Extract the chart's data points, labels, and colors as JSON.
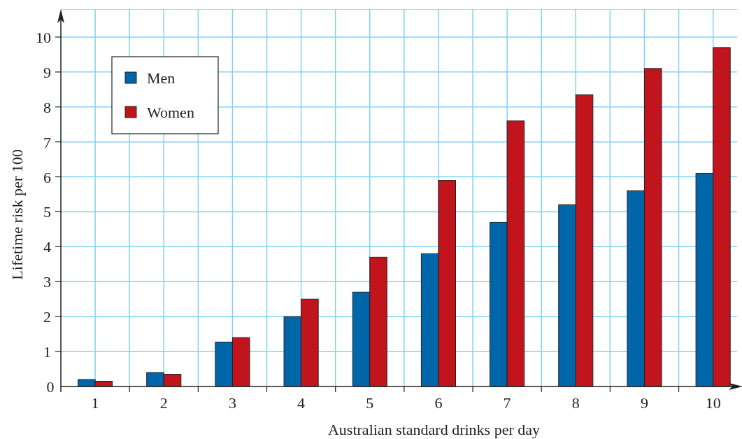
{
  "chart_data": {
    "type": "bar",
    "xlabel": "Australian standard drinks per day",
    "ylabel": "Lifetime risk per 100",
    "categories": [
      "1",
      "2",
      "3",
      "4",
      "5",
      "6",
      "7",
      "8",
      "9",
      "10"
    ],
    "series": [
      {
        "name": "Men",
        "color": "#0066aa",
        "values": [
          0.2,
          0.4,
          1.27,
          2.0,
          2.7,
          3.8,
          4.7,
          5.2,
          5.6,
          6.1
        ]
      },
      {
        "name": "Women",
        "color": "#c1141c",
        "values": [
          0.15,
          0.35,
          1.4,
          2.5,
          3.7,
          5.9,
          7.6,
          8.35,
          9.1,
          9.7
        ]
      }
    ],
    "ylim": [
      0,
      10.8
    ],
    "yticks": [
      0,
      1,
      2,
      3,
      4,
      5,
      6,
      7,
      8,
      9,
      10
    ],
    "grid": true,
    "legend": "top left"
  }
}
